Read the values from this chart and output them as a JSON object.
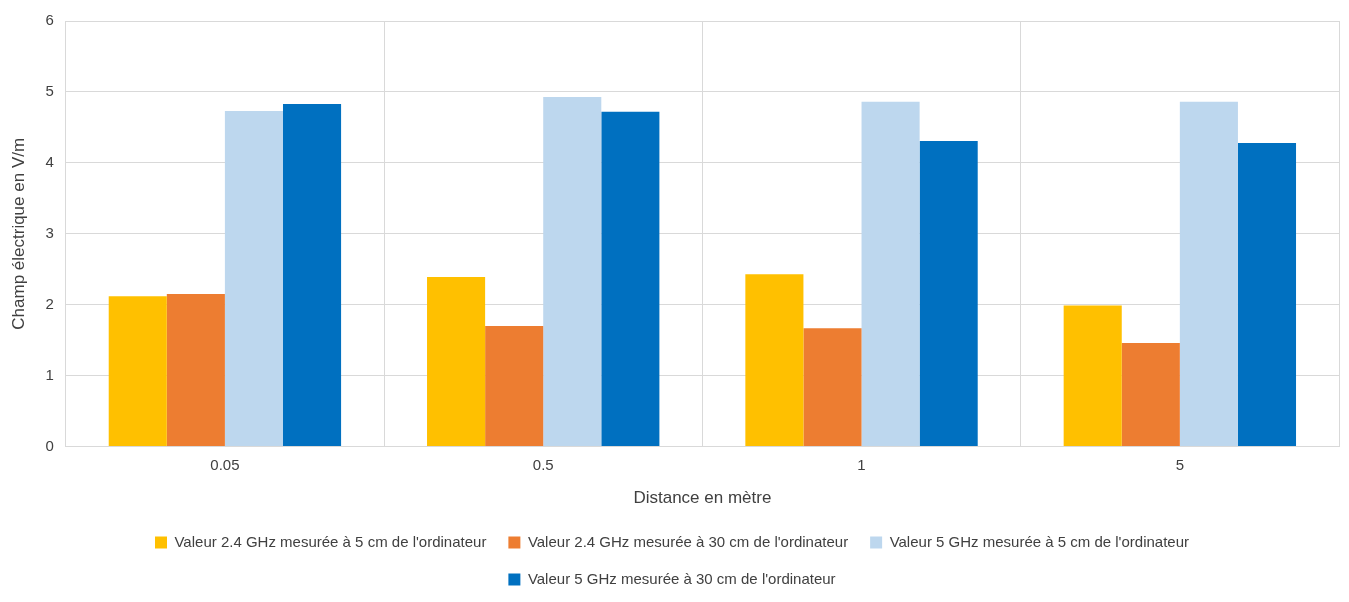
{
  "chart_data": {
    "type": "bar",
    "xlabel": "Distance en mètre",
    "ylabel": "Champ électrique en V/m",
    "categories": [
      "0.05",
      "0.5",
      "1",
      "5"
    ],
    "series": [
      {
        "name": "Valeur 2.4 GHz mesurée à 5 cm de l'ordinateur",
        "color": "#ffc000",
        "values": [
          2.12,
          2.39,
          2.43,
          1.99
        ]
      },
      {
        "name": "Valeur 2.4 GHz mesurée à 30 cm de l'ordinateur",
        "color": "#ed7d31",
        "values": [
          2.15,
          1.7,
          1.67,
          1.46
        ]
      },
      {
        "name": "Valeur 5 GHz mesurée à 5 cm de l'ordinateur",
        "color": "#bdd7ee",
        "values": [
          4.73,
          4.93,
          4.86,
          4.86
        ]
      },
      {
        "name": "Valeur 5 GHz mesurée à 30 cm de l'ordinateur",
        "color": "#0070c0",
        "values": [
          4.83,
          4.72,
          4.31,
          4.28
        ]
      }
    ],
    "ylim": [
      0,
      6
    ],
    "yticks": [
      0,
      1,
      2,
      3,
      4,
      5,
      6
    ],
    "grid": true,
    "legend": "bottom"
  }
}
